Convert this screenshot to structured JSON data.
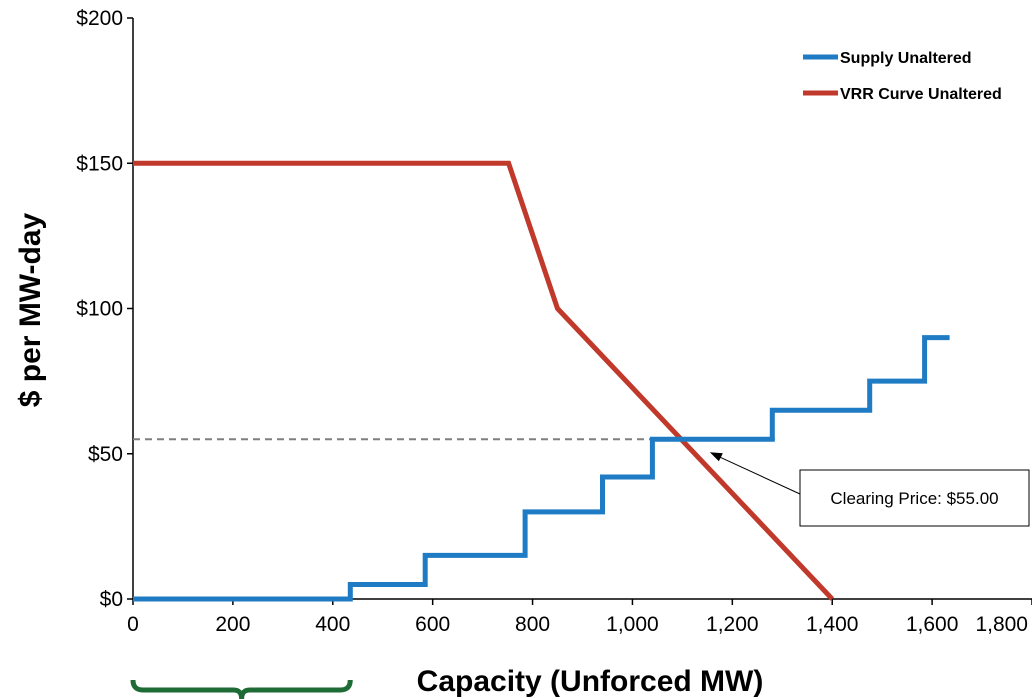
{
  "chart_data": {
    "type": "line",
    "title": "",
    "xlabel": "Capacity (Unforced MW)",
    "ylabel": "$ per MW-day",
    "xlim": [
      0,
      1800
    ],
    "ylim": [
      0,
      200
    ],
    "x_ticks": [
      0,
      200,
      400,
      600,
      800,
      1000,
      1200,
      1400,
      1600,
      1800
    ],
    "x_tick_labels": [
      "0",
      "200",
      "400",
      "600",
      "800",
      "1,000",
      "1,200",
      "1,400",
      "1,600",
      "1,800"
    ],
    "y_ticks": [
      0,
      50,
      100,
      150,
      200
    ],
    "y_tick_labels": [
      "$0",
      "$50",
      "$100",
      "$150",
      "$200"
    ],
    "grid": false,
    "legend_position": "top-right",
    "series": [
      {
        "name": "Supply Unaltered",
        "color": "#1f7bc3",
        "points": [
          [
            0,
            0
          ],
          [
            435,
            0
          ],
          [
            435,
            5
          ],
          [
            585,
            5
          ],
          [
            585,
            15
          ],
          [
            785,
            15
          ],
          [
            785,
            30
          ],
          [
            940,
            30
          ],
          [
            940,
            42
          ],
          [
            1040,
            42
          ],
          [
            1040,
            55
          ],
          [
            1280,
            55
          ],
          [
            1280,
            65
          ],
          [
            1475,
            65
          ],
          [
            1475,
            75
          ],
          [
            1585,
            75
          ],
          [
            1585,
            90
          ],
          [
            1635,
            90
          ]
        ]
      },
      {
        "name": "VRR Curve Unaltered",
        "color": "#c0392b",
        "points": [
          [
            0,
            150
          ],
          [
            752,
            150
          ],
          [
            850,
            100
          ],
          [
            1400,
            0
          ]
        ]
      }
    ],
    "reference_lines": [
      {
        "type": "horizontal",
        "y": 55,
        "style": "dashed",
        "color": "#7f7f7f"
      }
    ],
    "annotations": [
      {
        "text": "Clearing Price: $55.00",
        "points_to": [
          1155,
          55
        ]
      }
    ],
    "bracket": {
      "x_start": 0,
      "x_end": 435,
      "color": "#1e6b35"
    }
  }
}
